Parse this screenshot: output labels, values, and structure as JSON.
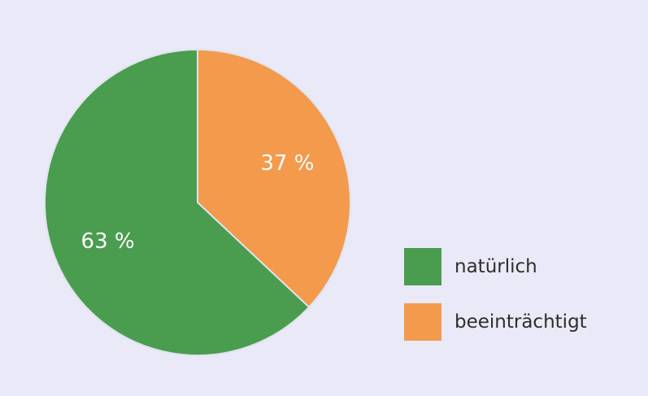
{
  "chart_data": {
    "type": "pie",
    "slices": [
      {
        "name": "beeinträchtigt",
        "value": 37,
        "label": "37 %",
        "color": "#f39a4c"
      },
      {
        "name": "natürlich",
        "value": 63,
        "label": "63 %",
        "color": "#4a9c4f"
      }
    ],
    "legend": {
      "placement": "bottom-right",
      "entries": [
        {
          "label": "natürlich",
          "color": "#4a9c4f"
        },
        {
          "label": "beeinträchtigt",
          "color": "#f39a4c"
        }
      ]
    }
  },
  "colors": {
    "background": "#e9e9f7",
    "slice_border": "#dfe3ee"
  }
}
